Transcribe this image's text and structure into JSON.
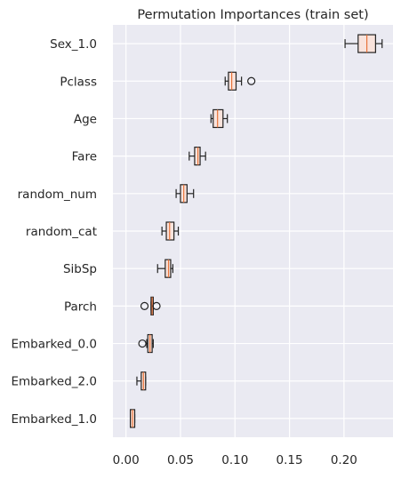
{
  "chart_data": {
    "type": "box",
    "orientation": "horizontal",
    "title": "Permutation Importances (train set)",
    "xlabel": "",
    "ylabel": "",
    "xlim": [
      -0.012,
      0.245
    ],
    "xticks": [
      0.0,
      0.05,
      0.1,
      0.15,
      0.2
    ],
    "xtick_labels": [
      "0.00",
      "0.05",
      "0.10",
      "0.15",
      "0.20"
    ],
    "grid": true,
    "legend": "none",
    "colors": {
      "background": "#eaeaf2",
      "grid": "#ffffff",
      "box_fill": "#f9e3dc",
      "box_edge": "#222222",
      "median": "#e8743b"
    },
    "categories": [
      "Sex_1.0",
      "Pclass",
      "Age",
      "Fare",
      "random_num",
      "random_cat",
      "SibSp",
      "Parch",
      "Embarked_0.0",
      "Embarked_2.0",
      "Embarked_1.0"
    ],
    "boxes": [
      {
        "label": "Sex_1.0",
        "whislo": 0.201,
        "q1": 0.213,
        "med": 0.221,
        "q3": 0.229,
        "whishi": 0.235,
        "fliers": []
      },
      {
        "label": "Pclass",
        "whislo": 0.091,
        "q1": 0.094,
        "med": 0.097,
        "q3": 0.101,
        "whishi": 0.106,
        "fliers": [
          0.115
        ]
      },
      {
        "label": "Age",
        "whislo": 0.078,
        "q1": 0.08,
        "med": 0.084,
        "q3": 0.089,
        "whishi": 0.093,
        "fliers": []
      },
      {
        "label": "Fare",
        "whislo": 0.058,
        "q1": 0.063,
        "med": 0.066,
        "q3": 0.068,
        "whishi": 0.073,
        "fliers": []
      },
      {
        "label": "random_num",
        "whislo": 0.046,
        "q1": 0.05,
        "med": 0.053,
        "q3": 0.056,
        "whishi": 0.062,
        "fliers": []
      },
      {
        "label": "random_cat",
        "whislo": 0.033,
        "q1": 0.037,
        "med": 0.04,
        "q3": 0.044,
        "whishi": 0.048,
        "fliers": []
      },
      {
        "label": "SibSp",
        "whislo": 0.029,
        "q1": 0.036,
        "med": 0.039,
        "q3": 0.041,
        "whishi": 0.043,
        "fliers": []
      },
      {
        "label": "Parch",
        "whislo": 0.023,
        "q1": 0.023,
        "med": 0.024,
        "q3": 0.025,
        "whishi": 0.025,
        "fliers": [
          0.017,
          0.028
        ]
      },
      {
        "label": "Embarked_0.0",
        "whislo": 0.019,
        "q1": 0.02,
        "med": 0.022,
        "q3": 0.024,
        "whishi": 0.025,
        "fliers": [
          0.015
        ]
      },
      {
        "label": "Embarked_2.0",
        "whislo": 0.01,
        "q1": 0.014,
        "med": 0.016,
        "q3": 0.018,
        "whishi": 0.018,
        "fliers": []
      },
      {
        "label": "Embarked_1.0",
        "whislo": 0.004,
        "q1": 0.004,
        "med": 0.006,
        "q3": 0.008,
        "whishi": 0.008,
        "fliers": []
      }
    ]
  }
}
